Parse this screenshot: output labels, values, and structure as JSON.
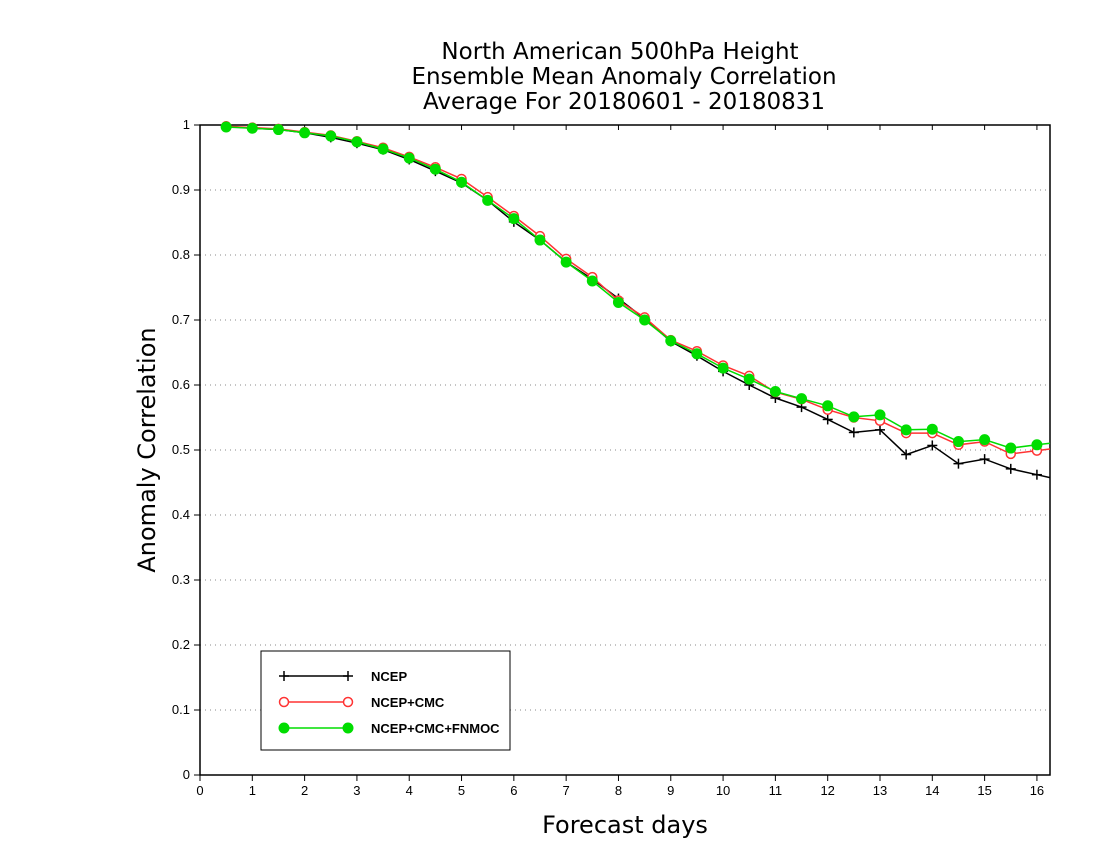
{
  "chart_data": {
    "type": "line",
    "title": [
      "North American 500hPa Height",
      "Ensemble Mean Anomaly Correlation",
      "Average For 20180601 - 20180831"
    ],
    "xlabel": "Forecast days",
    "ylabel": "Anomaly Correlation",
    "xlim": [
      0,
      16.25
    ],
    "ylim": [
      0,
      1
    ],
    "xticks": [
      "0",
      "1",
      "2",
      "3",
      "4",
      "5",
      "6",
      "7",
      "8",
      "9",
      "10",
      "11",
      "12",
      "13",
      "14",
      "15",
      "16"
    ],
    "yticks": [
      "0",
      "0.1",
      "0.2",
      "0.3",
      "0.4",
      "0.5",
      "0.6",
      "0.7",
      "0.8",
      "0.9",
      "1"
    ],
    "grid": "horizontal dotted",
    "legend_position": "bottom-left",
    "x": [
      0.5,
      1,
      1.5,
      2,
      2.5,
      3,
      3.5,
      4,
      4.5,
      5,
      5.5,
      6,
      6.5,
      7,
      7.5,
      8,
      8.5,
      9,
      9.5,
      10,
      10.5,
      11,
      11.5,
      12,
      12.5,
      13,
      13.5,
      14,
      14.5,
      15,
      15.5,
      16
    ],
    "series": [
      {
        "name": "NCEP",
        "color": "#000000",
        "marker": "plus",
        "values": [
          0.998,
          0.995,
          0.993,
          0.988,
          0.981,
          0.972,
          0.962,
          0.947,
          0.929,
          0.911,
          0.884,
          0.851,
          0.823,
          0.789,
          0.763,
          0.733,
          0.702,
          0.667,
          0.645,
          0.621,
          0.6,
          0.58,
          0.566,
          0.547,
          0.527,
          0.531,
          0.493,
          0.507,
          0.479,
          0.486,
          0.471,
          0.462
        ]
      },
      {
        "name": "NCEP+CMC",
        "color": "#ff3333",
        "marker": "open-circle",
        "values": [
          0.998,
          0.996,
          0.994,
          0.989,
          0.984,
          0.975,
          0.965,
          0.951,
          0.935,
          0.917,
          0.889,
          0.86,
          0.829,
          0.794,
          0.766,
          0.73,
          0.704,
          0.669,
          0.652,
          0.63,
          0.614,
          0.589,
          0.578,
          0.562,
          0.55,
          0.545,
          0.526,
          0.526,
          0.508,
          0.513,
          0.494,
          0.499
        ]
      },
      {
        "name": "NCEP+CMC+FNMOC",
        "color": "#00dd00",
        "marker": "filled-circle",
        "values": [
          0.997,
          0.995,
          0.993,
          0.988,
          0.983,
          0.974,
          0.963,
          0.949,
          0.932,
          0.912,
          0.884,
          0.856,
          0.823,
          0.789,
          0.76,
          0.727,
          0.7,
          0.668,
          0.648,
          0.626,
          0.609,
          0.59,
          0.579,
          0.568,
          0.551,
          0.554,
          0.531,
          0.532,
          0.513,
          0.516,
          0.503,
          0.508
        ]
      }
    ]
  }
}
